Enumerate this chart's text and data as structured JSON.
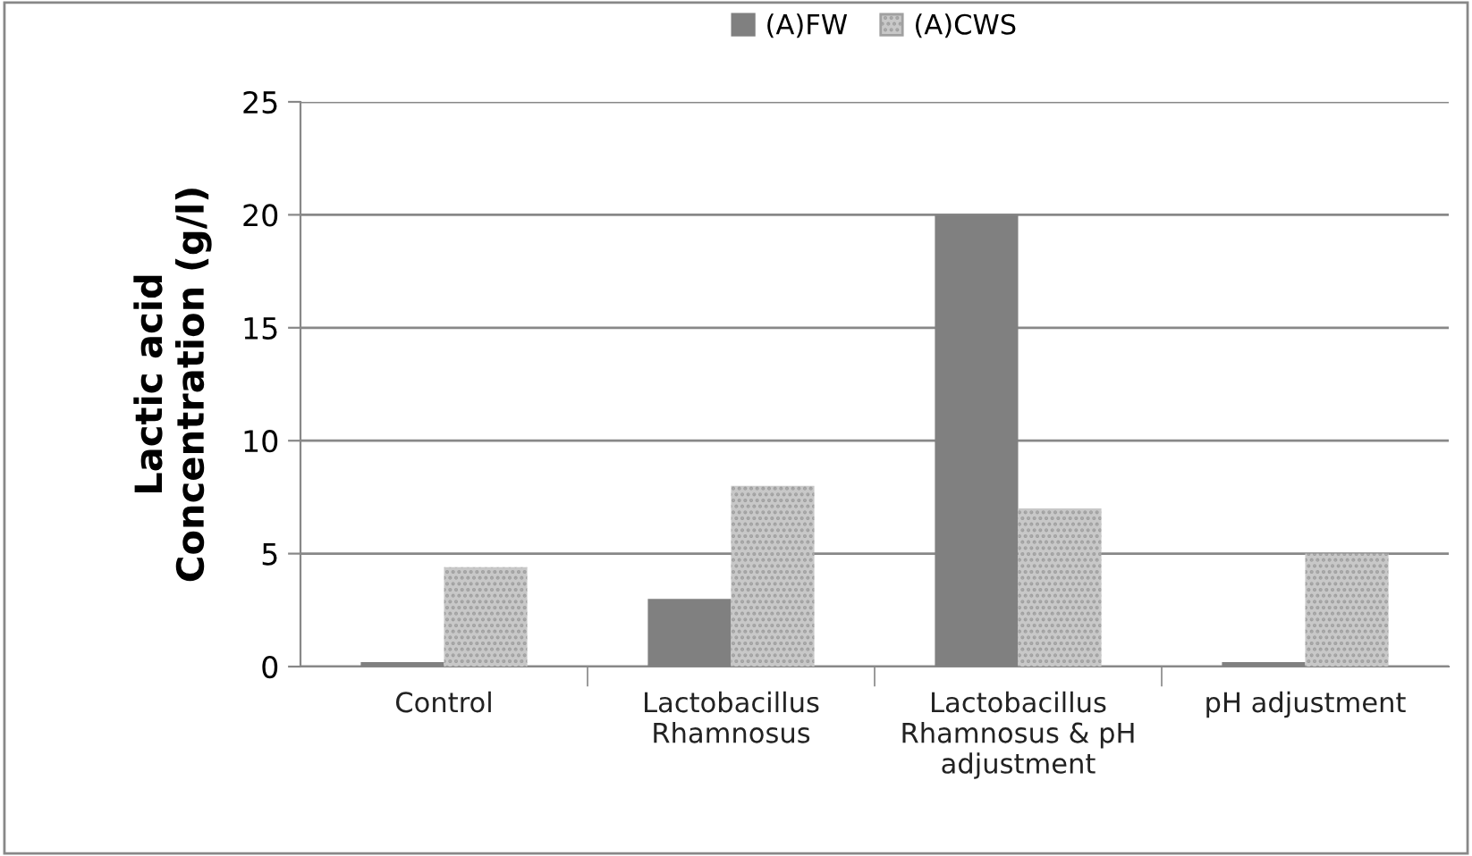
{
  "chart_data": {
    "type": "bar",
    "categories": [
      "Control",
      "Lactobacillus\nRhamnosus",
      "Lactobacillus\nRhamnosus & pH\nadjustment",
      "pH adjustment"
    ],
    "series": [
      {
        "name": "(A)FW",
        "color": "#808080",
        "values": [
          0.2,
          3.0,
          20.0,
          0.2
        ]
      },
      {
        "name": "(A)CWS",
        "color": "#c8c8c8",
        "values": [
          4.4,
          8.0,
          7.0,
          5.0
        ]
      }
    ],
    "ylabel": "Lactic acid\nConcentration (g/l)",
    "ylim": [
      0,
      25
    ],
    "yticks": [
      0,
      5,
      10,
      15,
      20,
      25
    ],
    "grid": "y",
    "legend": "top"
  }
}
